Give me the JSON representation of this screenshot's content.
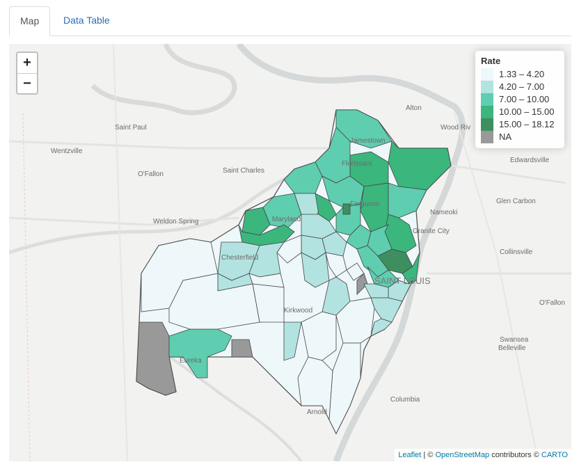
{
  "tabs": [
    {
      "label": "Map",
      "active": true
    },
    {
      "label": "Data Table",
      "active": false
    }
  ],
  "zoom": {
    "in_label": "+",
    "out_label": "−"
  },
  "legend": {
    "title": "Rate",
    "items": [
      {
        "label": "1.33 – 4.20",
        "color": "#eef7fa"
      },
      {
        "label": "4.20 – 7.00",
        "color": "#b2e3e0"
      },
      {
        "label": "7.00 – 10.00",
        "color": "#5fcdb0"
      },
      {
        "label": "10.00 – 15.00",
        "color": "#3bb67d"
      },
      {
        "label": "15.00 – 18.12",
        "color": "#3d8f5f"
      },
      {
        "label": "NA",
        "color": "#999999"
      }
    ]
  },
  "places": {
    "alton": "Alton",
    "wood_river": "Wood Riv",
    "saint_paul": "Saint Paul",
    "wentzville": "Wentzville",
    "ofallon_mo": "O'Fallon",
    "saint_charles": "Saint Charles",
    "edwardsville": "Edwardsville",
    "nameoki": "Nameoki",
    "glen_carbon": "Glen Carbon",
    "weldon_spring": "Weldon Spring",
    "granite_city": "Granite City",
    "collinsville": "Collinsville",
    "st_louis": "SAINT LOUIS",
    "ofallon_il": "O'Fallon",
    "swansea": "Swansea",
    "belleville": "Belleville",
    "columbia": "Columbia",
    "arnold": "Arnold",
    "eureka": "Eureka",
    "kirkwood": "Kirkwood",
    "chesterfield": "Chesterfield",
    "maryland_hts": "Maryland",
    "florissant": "Florissant",
    "jamestown": "Jamestown",
    "ferguson": "Ferguson"
  },
  "attribution": {
    "leaflet": "Leaflet",
    "sep": " | © ",
    "osm": "OpenStreetMap",
    "contrib": " contributors © ",
    "carto": "CARTO"
  }
}
